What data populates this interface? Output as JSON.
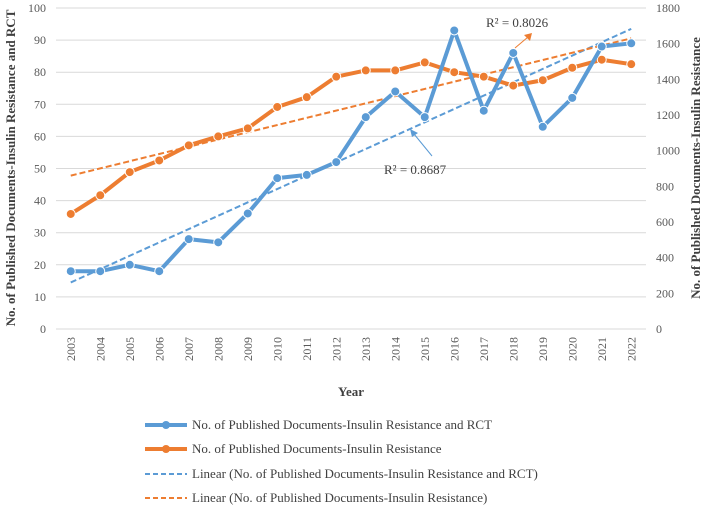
{
  "chart_data": {
    "type": "line",
    "title": "",
    "xlabel": "Year",
    "ylabel_left": "No. of Published Documents-Insulin Resistance and RCT",
    "ylabel_right": "No. of Published Documents-Insulin Resistance",
    "categories": [
      "2003",
      "2004",
      "2005",
      "2006",
      "2007",
      "2008",
      "2009",
      "2010",
      "2011",
      "2012",
      "2013",
      "2014",
      "2015",
      "2016",
      "2017",
      "2018",
      "2019",
      "2020",
      "2021",
      "2022"
    ],
    "ylim_left": [
      0,
      100
    ],
    "yticks_left": [
      0,
      10,
      20,
      30,
      40,
      50,
      60,
      70,
      80,
      90,
      100
    ],
    "ylim_right": [
      0,
      1800
    ],
    "yticks_right": [
      0,
      200,
      400,
      600,
      800,
      1000,
      1200,
      1400,
      1600,
      1800
    ],
    "grid": true,
    "series": [
      {
        "name": "No. of Published Documents-Insulin Resistance and RCT",
        "axis": "left",
        "color": "#5b9bd5",
        "values": [
          18,
          18,
          20,
          18,
          28,
          27,
          36,
          47,
          48,
          52,
          66,
          74,
          66,
          93,
          68,
          86,
          63,
          72,
          88,
          89
        ]
      },
      {
        "name": "No. of Published Documents-Insulin Resistance",
        "axis": "right",
        "color": "#ed7d31",
        "values": [
          645,
          750,
          880,
          945,
          1030,
          1080,
          1125,
          1245,
          1300,
          1415,
          1450,
          1450,
          1495,
          1440,
          1415,
          1365,
          1395,
          1465,
          1510,
          1485
        ]
      }
    ],
    "trendlines": [
      {
        "name": "Linear (No. of Published Documents-Insulin Resistance and RCT)",
        "axis": "left",
        "color": "#5b9bd5",
        "start": 14.5,
        "end": 93.5,
        "r2_label": "R² = 0.8687"
      },
      {
        "name": "Linear (No. of Published Documents-Insulin Resistance)",
        "axis": "right",
        "color": "#ed7d31",
        "start": 860,
        "end": 1630,
        "r2_label": "R² = 0.8026"
      }
    ],
    "legend_position": "bottom"
  }
}
